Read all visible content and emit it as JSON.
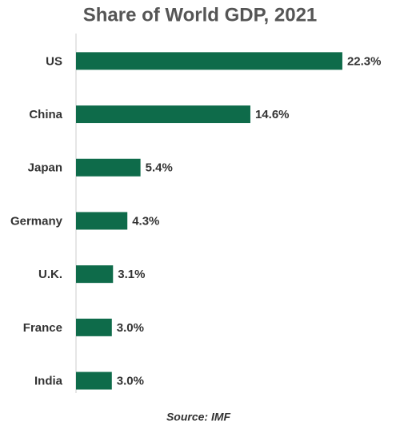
{
  "chart_data": {
    "type": "bar",
    "orientation": "horizontal",
    "title": "Share of World GDP, 2021",
    "categories": [
      "US",
      "China",
      "Japan",
      "Germany",
      "U.K.",
      "France",
      "India"
    ],
    "values": [
      22.3,
      14.6,
      5.4,
      4.3,
      3.1,
      3.0,
      3.0
    ],
    "value_labels": [
      "22.3%",
      "14.6%",
      "5.4%",
      "4.3%",
      "3.1%",
      "3.0%",
      "3.0%"
    ],
    "color": "#0e6b4a",
    "source": "Source: IMF"
  }
}
